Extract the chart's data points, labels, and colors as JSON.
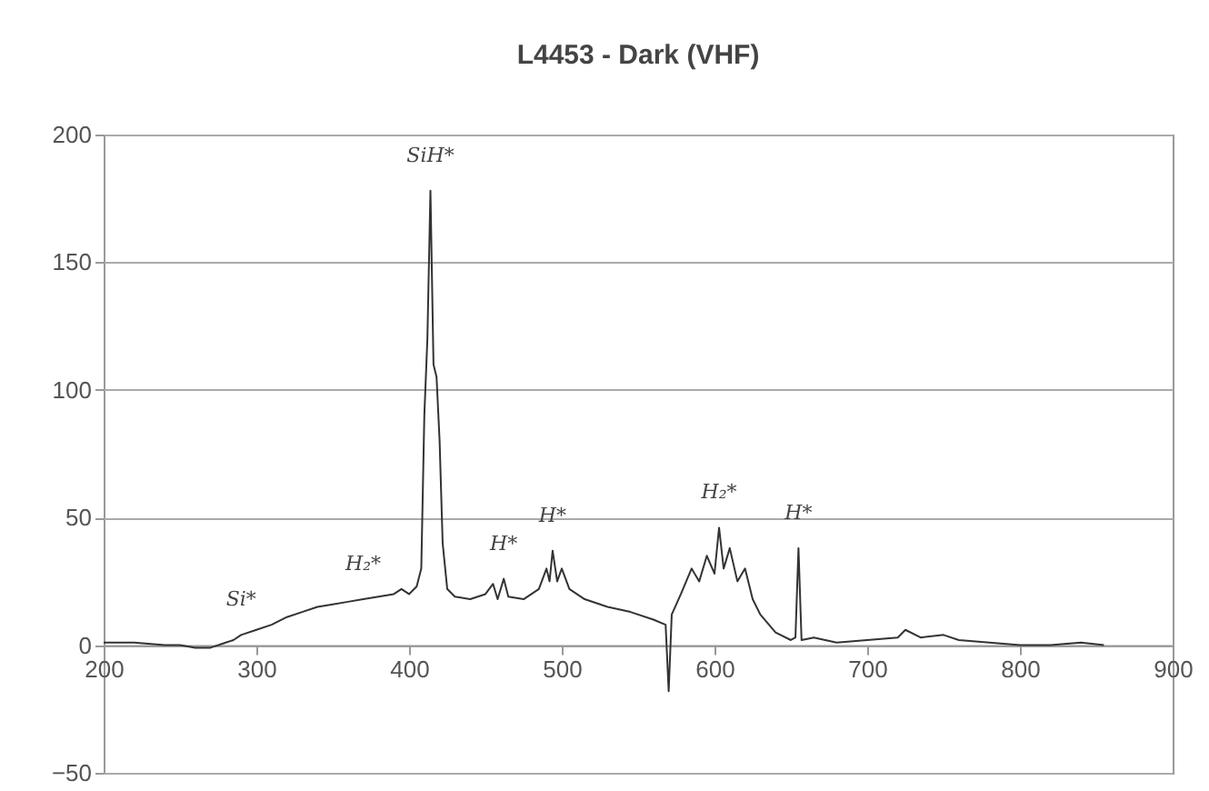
{
  "chart_data": {
    "type": "line",
    "title": "L4453 - Dark (VHF)",
    "x": [
      200,
      220,
      240,
      250,
      260,
      270,
      280,
      285,
      290,
      300,
      310,
      320,
      330,
      340,
      350,
      360,
      370,
      380,
      390,
      395,
      400,
      405,
      408,
      410,
      412,
      414,
      416,
      418,
      420,
      422,
      425,
      430,
      440,
      450,
      455,
      458,
      462,
      465,
      475,
      485,
      490,
      492,
      494,
      497,
      500,
      505,
      515,
      530,
      545,
      560,
      568,
      570,
      572,
      578,
      585,
      590,
      595,
      600,
      603,
      606,
      610,
      615,
      620,
      625,
      630,
      640,
      650,
      653,
      655,
      657,
      665,
      680,
      700,
      720,
      725,
      735,
      750,
      760,
      780,
      800,
      820,
      840,
      855
    ],
    "series": [
      {
        "color": "#333333",
        "values": [
          1,
          1,
          0,
          0,
          -1,
          -1,
          1,
          2,
          4,
          6,
          8,
          11,
          13,
          15,
          16,
          17,
          18,
          19,
          20,
          22,
          20,
          23,
          30,
          90,
          120,
          178,
          110,
          105,
          80,
          40,
          22,
          19,
          18,
          20,
          24,
          18,
          26,
          19,
          18,
          22,
          30,
          25,
          37,
          25,
          30,
          22,
          18,
          15,
          13,
          10,
          8,
          -18,
          12,
          20,
          30,
          25,
          35,
          28,
          46,
          30,
          38,
          25,
          30,
          18,
          12,
          5,
          2,
          3,
          38,
          2,
          3,
          1,
          2,
          3,
          6,
          3,
          4,
          2,
          1,
          0,
          0,
          1,
          0
        ]
      }
    ],
    "xlim": [
      200,
      900
    ],
    "xticks": [
      200,
      300,
      400,
      500,
      600,
      700,
      800,
      900
    ],
    "ylim": [
      -50,
      200
    ],
    "yticks": [
      -50,
      0,
      50,
      100,
      150,
      200
    ],
    "grid": "y",
    "annotations": [
      {
        "text": "SiH*",
        "x": 414,
        "y": 178
      },
      {
        "text": "Si*",
        "x": 290,
        "y": 4
      },
      {
        "text": "H₂*",
        "x": 370,
        "y": 18
      },
      {
        "text": "H*",
        "x": 462,
        "y": 26
      },
      {
        "text": "H*",
        "x": 494,
        "y": 37
      },
      {
        "text": "H₂*",
        "x": 603,
        "y": 46
      },
      {
        "text": "H*",
        "x": 655,
        "y": 38
      }
    ]
  }
}
